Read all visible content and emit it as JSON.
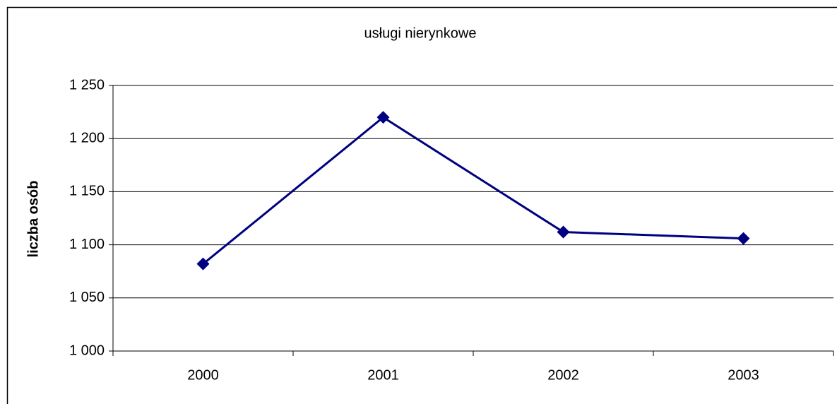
{
  "chart_data": {
    "type": "line",
    "title": "usługi nierynkowe",
    "ylabel": "liczba osób",
    "categories": [
      "2000",
      "2001",
      "2002",
      "2003"
    ],
    "series": [
      {
        "name": "usługi nierynkowe",
        "color": "#000080",
        "values": [
          1082,
          1220,
          1112,
          1106
        ]
      }
    ],
    "ylim": [
      1000,
      1250
    ],
    "yticks": [
      {
        "value": 1000,
        "label": "1 000"
      },
      {
        "value": 1050,
        "label": "1 050"
      },
      {
        "value": 1100,
        "label": "1 100"
      },
      {
        "value": 1150,
        "label": "1 150"
      },
      {
        "value": 1200,
        "label": "1 200"
      },
      {
        "value": 1250,
        "label": "1 250"
      }
    ],
    "grid": true
  }
}
